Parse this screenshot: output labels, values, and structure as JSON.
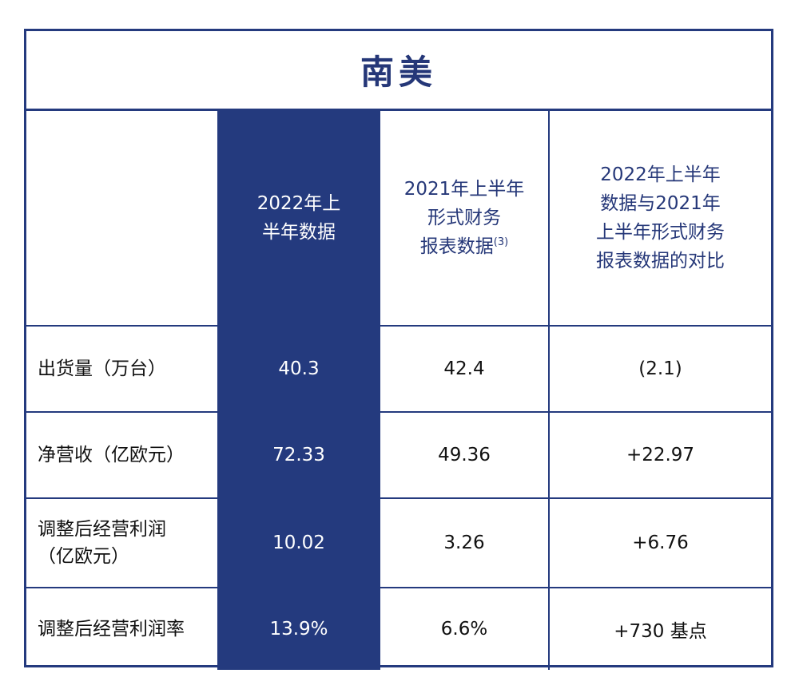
{
  "title": "南美",
  "headers": {
    "col1": [
      "2022年上",
      "半年数据"
    ],
    "col2": [
      "2021年上半年",
      "形式财务",
      "报表数据"
    ],
    "col2_sup": "(3)",
    "col3": [
      "2022年上半年",
      "数据与2021年",
      "上半年形式财务",
      "报表数据的对比"
    ]
  },
  "rows": [
    {
      "label": [
        "出货量（万台）"
      ],
      "v1": "40.3",
      "v2": "42.4",
      "v3": "(2.1)"
    },
    {
      "label": [
        "净营收（亿欧元）"
      ],
      "v1": "72.33",
      "v2": "49.36",
      "v3": "+22.97"
    },
    {
      "label": [
        "调整后经营利润",
        "（亿欧元）"
      ],
      "v1": "10.02",
      "v2": "3.26",
      "v3": "+6.76"
    },
    {
      "label": [
        "调整后经营利润率"
      ],
      "v1": "13.9%",
      "v2": "6.6%",
      "v3": "+730 基点"
    }
  ],
  "colors": {
    "navy": "#243a7e",
    "white": "#ffffff"
  }
}
